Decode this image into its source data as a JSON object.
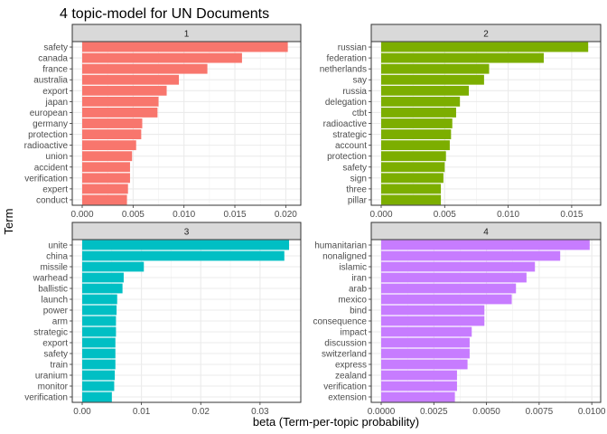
{
  "chart_title": "4 topic-model for UN Documents",
  "chart_data": {
    "type": "bar",
    "orientation": "horizontal",
    "facet_layout": "2x2",
    "title": "4 topic-model for UN Documents",
    "xlabel": "beta (Term-per-topic probability)",
    "ylabel": "Term",
    "grid": true,
    "panels": [
      {
        "strip": "1",
        "color": "#F8766D",
        "xlim": [
          0,
          0.0205
        ],
        "xticks": [
          0,
          0.005,
          0.01,
          0.015,
          0.02
        ],
        "xtick_labels": [
          "0.000",
          "0.005",
          "0.010",
          "0.015",
          "0.020"
        ],
        "terms": [
          "safety",
          "canada",
          "france",
          "australia",
          "export",
          "japan",
          "european",
          "germany",
          "protection",
          "radioactive",
          "union",
          "accident",
          "verification",
          "expert",
          "conduct"
        ],
        "values": [
          0.0202,
          0.0157,
          0.0123,
          0.0095,
          0.0083,
          0.0075,
          0.0074,
          0.0059,
          0.0058,
          0.0053,
          0.0049,
          0.0047,
          0.0047,
          0.0045,
          0.0044
        ]
      },
      {
        "strip": "2",
        "color": "#7CAE00",
        "xlim": [
          0,
          0.0165
        ],
        "xticks": [
          0,
          0.005,
          0.01,
          0.015
        ],
        "xtick_labels": [
          "0.000",
          "0.005",
          "0.010",
          "0.015"
        ],
        "terms": [
          "russian",
          "federation",
          "netherlands",
          "say",
          "russia",
          "delegation",
          "ctbt",
          "radioactive",
          "strategic",
          "account",
          "protection",
          "safety",
          "sign",
          "three",
          "pillar"
        ],
        "values": [
          0.0163,
          0.0128,
          0.0085,
          0.0081,
          0.0069,
          0.0062,
          0.0059,
          0.0056,
          0.0055,
          0.0054,
          0.0051,
          0.005,
          0.0049,
          0.0047,
          0.0047
        ]
      },
      {
        "strip": "3",
        "color": "#00BFC4",
        "xlim": [
          0,
          0.0352
        ],
        "xticks": [
          0,
          0.01,
          0.02,
          0.03
        ],
        "xtick_labels": [
          "0.00",
          "0.01",
          "0.02",
          "0.03"
        ],
        "terms": [
          "unite",
          "china",
          "missile",
          "warhead",
          "ballistic",
          "launch",
          "power",
          "arm",
          "strategic",
          "export",
          "safety",
          "train",
          "uranium",
          "monitor",
          "verification"
        ],
        "values": [
          0.0349,
          0.0341,
          0.0104,
          0.007,
          0.0068,
          0.0059,
          0.0058,
          0.0057,
          0.0057,
          0.0056,
          0.0056,
          0.0056,
          0.0055,
          0.0054,
          0.005
        ]
      },
      {
        "strip": "4",
        "color": "#C77CFF",
        "xlim": [
          0,
          0.00995
        ],
        "xticks": [
          0,
          0.0025,
          0.005,
          0.0075,
          0.01
        ],
        "xtick_labels": [
          "0.0000",
          "0.0025",
          "0.0050",
          "0.0075",
          "0.0100"
        ],
        "terms": [
          "humanitarian",
          "nonaligned",
          "islamic",
          "iran",
          "arab",
          "mexico",
          "bind",
          "consequence",
          "impact",
          "discussion",
          "switzerland",
          "express",
          "zealand",
          "verification",
          "extension"
        ],
        "values": [
          0.0099,
          0.0085,
          0.0073,
          0.0069,
          0.0064,
          0.0062,
          0.0049,
          0.0049,
          0.0043,
          0.0042,
          0.0042,
          0.0041,
          0.0036,
          0.0036,
          0.0035
        ]
      }
    ]
  }
}
